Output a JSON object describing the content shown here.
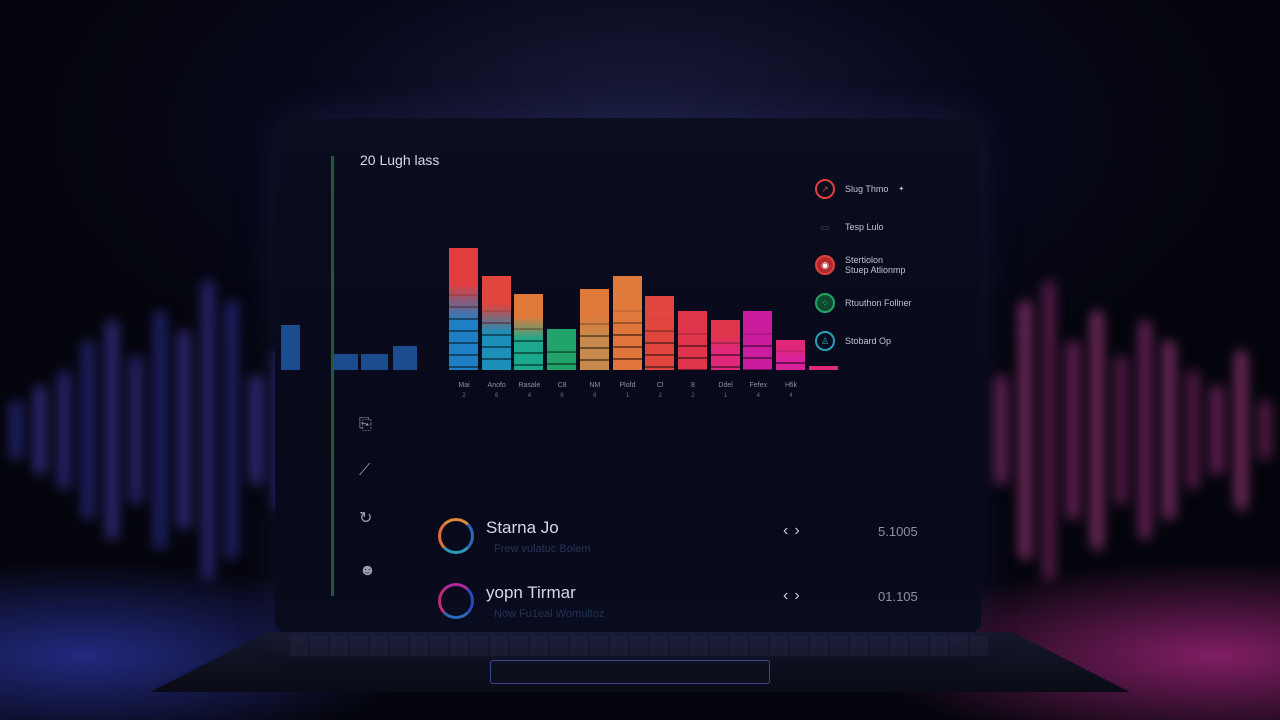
{
  "dashboard": {
    "title": "20 Lugh lass"
  },
  "chart_data": {
    "type": "bar",
    "title": "20 Lugh lass",
    "xlabel": "",
    "ylabel": "",
    "ylim": [
      0,
      100
    ],
    "grid": false,
    "left_values": [
      37,
      13,
      13,
      20
    ],
    "categories": [
      "Mai",
      "Anofo",
      "Rasale",
      "C8",
      "NM",
      "Plofd",
      "Cl",
      "8",
      "Ddel",
      "Fefex",
      "Hfik",
      ""
    ],
    "tick_sublabels": [
      "2",
      "6",
      "4",
      "6",
      "8",
      "1",
      "2",
      "2",
      "1",
      "4",
      "4"
    ],
    "values": [
      100,
      77,
      62,
      34,
      66,
      77,
      61,
      48,
      41,
      48,
      25,
      3
    ],
    "colors": [
      "#1e7fc4",
      "#1e8fb8",
      "#1ca88e",
      "#21a36a",
      "#c58a4c",
      "#e0753c",
      "#e0453e",
      "#e0344c",
      "#e0287a",
      "#cc1c9e",
      "#d8229a",
      "#e0287a"
    ],
    "left_colors": [
      "#1d4c8e",
      "#1d4c8e",
      "#1d4c8e",
      "#1d4c8e"
    ],
    "cap_colors": [
      "#e03e3e",
      "#e0453e",
      "#e07a3a",
      "#21a36a",
      "#e07a3a",
      "#e07a3a",
      "#e0453e",
      "#e0344c",
      "#e0344c",
      "#cc1c9e",
      "#e0287a",
      "#e0287a"
    ]
  },
  "legend": [
    {
      "label": "Slug Thmo",
      "extra": "✦",
      "color": "#e0403e",
      "icon": "gauge-icon"
    },
    {
      "label": "Tesp Lulo",
      "color": "#4a4f70",
      "icon": "keyboard-icon"
    },
    {
      "label": "Stertiolon",
      "label2": "Stuep Atlionmp",
      "color": "#e0403e",
      "icon": "target-icon"
    },
    {
      "label": "Rtuuthon Follner",
      "color": "#21a36a",
      "icon": "group-icon"
    },
    {
      "label": "Stobard Op",
      "color": "#2aa0b8",
      "icon": "person-icon"
    }
  ],
  "sidebar": [
    {
      "icon": "document-icon",
      "glyph": "⎘"
    },
    {
      "icon": "chart-icon",
      "glyph": "⟋"
    },
    {
      "icon": "refresh-icon",
      "glyph": "↻"
    },
    {
      "icon": "face-icon",
      "glyph": "☻"
    }
  ],
  "rows": [
    {
      "name": "Starna Jo",
      "sub": "Frew vulatuc Bolem",
      "value": "5.1005",
      "prev": "‹",
      "next": "›"
    },
    {
      "name": "yopn Tirmar",
      "sub": "Now Fu1eal Womultoz",
      "value": "01.105",
      "prev": "‹",
      "next": "›"
    }
  ]
}
